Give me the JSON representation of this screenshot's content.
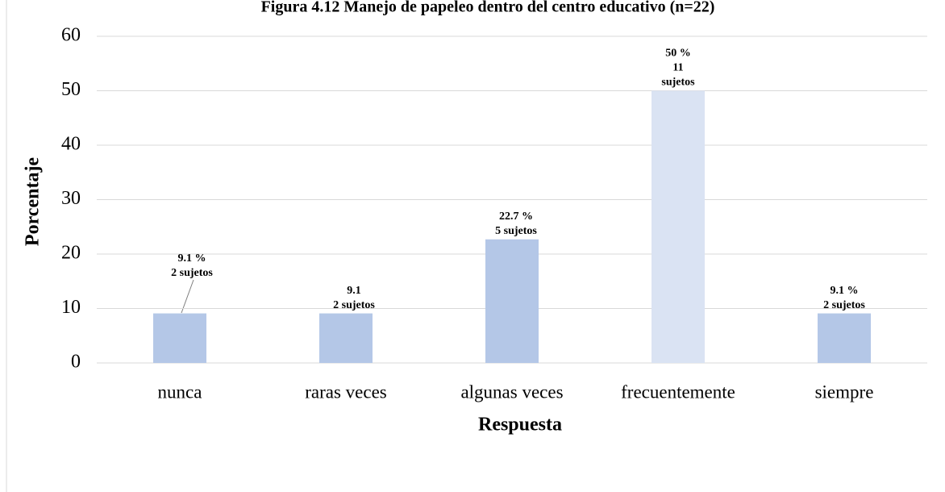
{
  "chart_data": {
    "type": "bar",
    "title": "Figura 4.12 Manejo de papeleo dentro del centro educativo (n=22)",
    "x_label": "Respuesta",
    "y_label": "Porcentaje",
    "categories": [
      "nunca",
      "raras veces",
      "algunas veces",
      "frecuentemente",
      "siempre"
    ],
    "values": [
      9.1,
      9.1,
      22.7,
      50,
      9.1
    ],
    "value_labels": [
      [
        "9.1 %",
        "2 sujetos"
      ],
      [
        "9.1",
        "2 sujetos"
      ],
      [
        "22.7 %",
        "5 sujetos"
      ],
      [
        "50 %",
        "11",
        "sujetos"
      ],
      [
        "9.1 %",
        "2 sujetos"
      ]
    ],
    "colors": [
      "#b4c7e7",
      "#b4c7e7",
      "#b4c7e7",
      "#dae3f3",
      "#b4c7e7"
    ],
    "ylim": [
      0,
      60
    ],
    "yticks": [
      0,
      10,
      20,
      30,
      40,
      50,
      60
    ],
    "grid": true
  }
}
